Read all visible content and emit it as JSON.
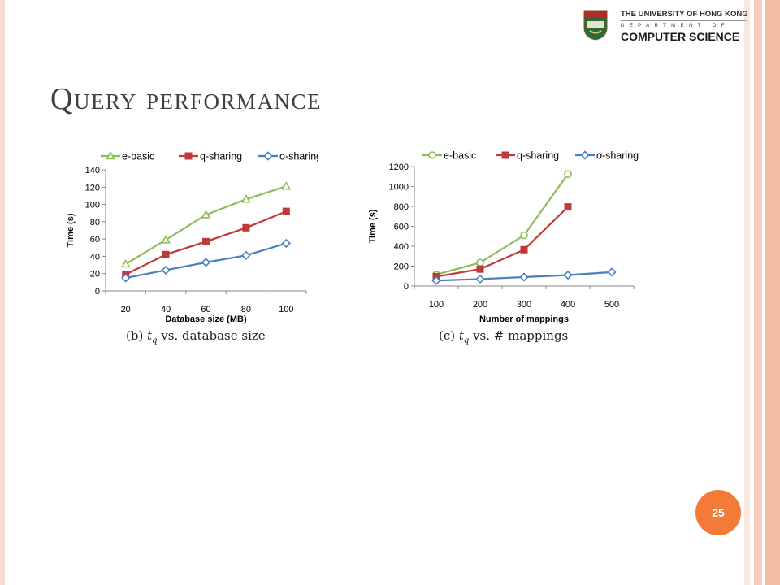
{
  "slide": {
    "title": "Query performance",
    "page_number": "25",
    "accent_color": "#f47a3a"
  },
  "logo": {
    "university": "THE UNIVERSITY OF HONG KONG",
    "department": "DEPARTMENT OF",
    "name": "COMPUTER SCIENCE"
  },
  "captions": {
    "left": "(b)  tq  vs. database size",
    "right": "(c)  tq  vs. # mappings"
  },
  "chart_data": [
    {
      "type": "line",
      "xlabel": "Database size (MB)",
      "ylabel": "Time (s)",
      "categories": [
        "20",
        "40",
        "60",
        "80",
        "100"
      ],
      "ylim": [
        0,
        140
      ],
      "yticks": [
        0,
        20,
        40,
        60,
        80,
        100,
        120,
        140
      ],
      "legend": "top",
      "series": [
        {
          "name": "e-basic",
          "color": "#8fbc56",
          "marker": "triangle",
          "values": [
            31,
            59,
            88,
            106,
            121
          ]
        },
        {
          "name": "q-sharing",
          "color": "#c0393b",
          "marker": "square",
          "values": [
            19,
            42,
            57,
            73,
            92
          ]
        },
        {
          "name": "o-sharing",
          "color": "#4a7ebf",
          "marker": "diamond",
          "values": [
            15,
            24,
            33,
            41,
            55
          ]
        }
      ]
    },
    {
      "type": "line",
      "xlabel": "Number of mappings",
      "ylabel": "Time (s)",
      "categories": [
        "100",
        "200",
        "300",
        "400",
        "500"
      ],
      "ylim": [
        0,
        1200
      ],
      "yticks": [
        0,
        200,
        400,
        600,
        800,
        1000,
        1200
      ],
      "legend": "top",
      "series": [
        {
          "name": "e-basic",
          "color": "#8fbc56",
          "marker": "circle",
          "values": [
            115,
            235,
            510,
            1125,
            null
          ]
        },
        {
          "name": "q-sharing",
          "color": "#c0393b",
          "marker": "square",
          "values": [
            95,
            170,
            365,
            795,
            null
          ]
        },
        {
          "name": "o-sharing",
          "color": "#4a7ebf",
          "marker": "diamond",
          "values": [
            55,
            70,
            90,
            110,
            140
          ]
        }
      ]
    }
  ]
}
